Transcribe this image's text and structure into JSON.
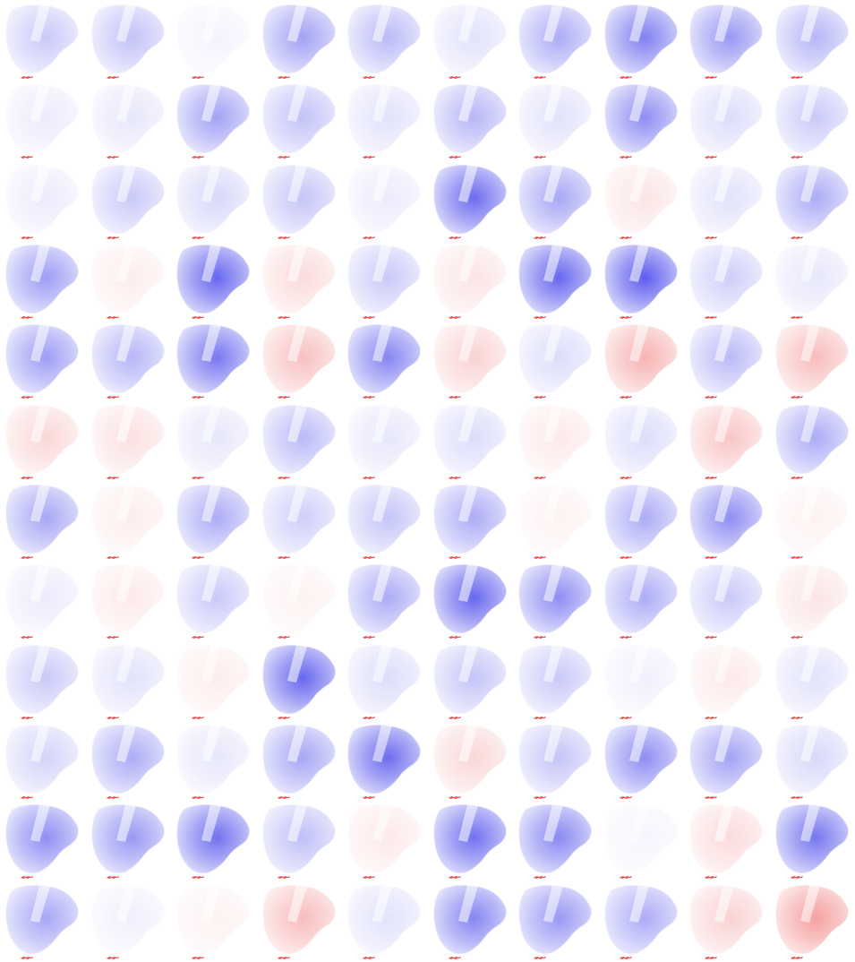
{
  "colors": {
    "background": "#ffffff",
    "negative": "#3b3bea",
    "positive": "#ec4b4b",
    "neutral": "#ffffff",
    "marker": "#e82828"
  },
  "grid": {
    "rows": 12,
    "columns": 10,
    "tiles": [
      {
        "row": 1,
        "col": 1,
        "level": -0.22
      },
      {
        "row": 1,
        "col": 2,
        "level": -0.25
      },
      {
        "row": 1,
        "col": 3,
        "level": -0.05
      },
      {
        "row": 1,
        "col": 4,
        "level": -0.38
      },
      {
        "row": 1,
        "col": 5,
        "level": -0.28
      },
      {
        "row": 1,
        "col": 6,
        "level": -0.12
      },
      {
        "row": 1,
        "col": 7,
        "level": -0.34
      },
      {
        "row": 1,
        "col": 8,
        "level": -0.52
      },
      {
        "row": 1,
        "col": 9,
        "level": -0.42
      },
      {
        "row": 1,
        "col": 10,
        "level": -0.3
      },
      {
        "row": 2,
        "col": 1,
        "level": -0.08
      },
      {
        "row": 2,
        "col": 2,
        "level": -0.1
      },
      {
        "row": 2,
        "col": 3,
        "level": -0.38
      },
      {
        "row": 2,
        "col": 4,
        "level": -0.25
      },
      {
        "row": 2,
        "col": 5,
        "level": -0.12
      },
      {
        "row": 2,
        "col": 6,
        "level": -0.3
      },
      {
        "row": 2,
        "col": 7,
        "level": -0.12
      },
      {
        "row": 2,
        "col": 8,
        "level": -0.46
      },
      {
        "row": 2,
        "col": 9,
        "level": -0.14
      },
      {
        "row": 2,
        "col": 10,
        "level": -0.22
      },
      {
        "row": 3,
        "col": 1,
        "level": -0.08
      },
      {
        "row": 3,
        "col": 2,
        "level": -0.22
      },
      {
        "row": 3,
        "col": 3,
        "level": -0.16
      },
      {
        "row": 3,
        "col": 4,
        "level": -0.24
      },
      {
        "row": 3,
        "col": 5,
        "level": -0.08
      },
      {
        "row": 3,
        "col": 6,
        "level": -0.6
      },
      {
        "row": 3,
        "col": 7,
        "level": -0.36
      },
      {
        "row": 3,
        "col": 8,
        "level": 0.12
      },
      {
        "row": 3,
        "col": 9,
        "level": -0.12
      },
      {
        "row": 3,
        "col": 10,
        "level": -0.34
      },
      {
        "row": 4,
        "col": 1,
        "level": -0.4
      },
      {
        "row": 4,
        "col": 2,
        "level": 0.08
      },
      {
        "row": 4,
        "col": 3,
        "level": -0.62
      },
      {
        "row": 4,
        "col": 4,
        "level": 0.16
      },
      {
        "row": 4,
        "col": 5,
        "level": -0.22
      },
      {
        "row": 4,
        "col": 6,
        "level": 0.12
      },
      {
        "row": 4,
        "col": 7,
        "level": -0.62
      },
      {
        "row": 4,
        "col": 8,
        "level": -0.66
      },
      {
        "row": 4,
        "col": 9,
        "level": -0.2
      },
      {
        "row": 4,
        "col": 10,
        "level": -0.1
      },
      {
        "row": 5,
        "col": 1,
        "level": -0.4
      },
      {
        "row": 5,
        "col": 2,
        "level": -0.3
      },
      {
        "row": 5,
        "col": 3,
        "level": -0.55
      },
      {
        "row": 5,
        "col": 4,
        "level": 0.28
      },
      {
        "row": 5,
        "col": 5,
        "level": -0.5
      },
      {
        "row": 5,
        "col": 6,
        "level": 0.2
      },
      {
        "row": 5,
        "col": 7,
        "level": -0.14
      },
      {
        "row": 5,
        "col": 8,
        "level": 0.34
      },
      {
        "row": 5,
        "col": 9,
        "level": -0.28
      },
      {
        "row": 5,
        "col": 10,
        "level": 0.3
      },
      {
        "row": 6,
        "col": 1,
        "level": 0.18
      },
      {
        "row": 6,
        "col": 2,
        "level": 0.14
      },
      {
        "row": 6,
        "col": 3,
        "level": -0.1
      },
      {
        "row": 6,
        "col": 4,
        "level": -0.28
      },
      {
        "row": 6,
        "col": 5,
        "level": -0.1
      },
      {
        "row": 6,
        "col": 6,
        "level": -0.14
      },
      {
        "row": 6,
        "col": 7,
        "level": 0.1
      },
      {
        "row": 6,
        "col": 8,
        "level": -0.14
      },
      {
        "row": 6,
        "col": 9,
        "level": 0.26
      },
      {
        "row": 6,
        "col": 10,
        "level": -0.34
      },
      {
        "row": 7,
        "col": 1,
        "level": -0.36
      },
      {
        "row": 7,
        "col": 2,
        "level": 0.08
      },
      {
        "row": 7,
        "col": 3,
        "level": -0.34
      },
      {
        "row": 7,
        "col": 4,
        "level": -0.2
      },
      {
        "row": 7,
        "col": 5,
        "level": -0.24
      },
      {
        "row": 7,
        "col": 6,
        "level": -0.34
      },
      {
        "row": 7,
        "col": 7,
        "level": 0.06
      },
      {
        "row": 7,
        "col": 8,
        "level": -0.34
      },
      {
        "row": 7,
        "col": 9,
        "level": -0.46
      },
      {
        "row": 7,
        "col": 10,
        "level": 0.06
      },
      {
        "row": 8,
        "col": 1,
        "level": -0.08
      },
      {
        "row": 8,
        "col": 2,
        "level": 0.1
      },
      {
        "row": 8,
        "col": 3,
        "level": -0.22
      },
      {
        "row": 8,
        "col": 4,
        "level": 0.06
      },
      {
        "row": 8,
        "col": 5,
        "level": -0.34
      },
      {
        "row": 8,
        "col": 6,
        "level": -0.62
      },
      {
        "row": 8,
        "col": 7,
        "level": -0.46
      },
      {
        "row": 8,
        "col": 8,
        "level": -0.34
      },
      {
        "row": 8,
        "col": 9,
        "level": -0.22
      },
      {
        "row": 8,
        "col": 10,
        "level": 0.12
      },
      {
        "row": 9,
        "col": 1,
        "level": -0.22
      },
      {
        "row": 9,
        "col": 2,
        "level": -0.12
      },
      {
        "row": 9,
        "col": 3,
        "level": 0.08
      },
      {
        "row": 9,
        "col": 4,
        "level": -0.62
      },
      {
        "row": 9,
        "col": 5,
        "level": -0.14
      },
      {
        "row": 9,
        "col": 6,
        "level": -0.24
      },
      {
        "row": 9,
        "col": 7,
        "level": -0.22
      },
      {
        "row": 9,
        "col": 8,
        "level": -0.06
      },
      {
        "row": 9,
        "col": 9,
        "level": 0.1
      },
      {
        "row": 9,
        "col": 10,
        "level": -0.12
      },
      {
        "row": 10,
        "col": 1,
        "level": -0.18
      },
      {
        "row": 10,
        "col": 2,
        "level": -0.34
      },
      {
        "row": 10,
        "col": 3,
        "level": -0.1
      },
      {
        "row": 10,
        "col": 4,
        "level": -0.36
      },
      {
        "row": 10,
        "col": 5,
        "level": -0.6
      },
      {
        "row": 10,
        "col": 6,
        "level": 0.18
      },
      {
        "row": 10,
        "col": 7,
        "level": -0.24
      },
      {
        "row": 10,
        "col": 8,
        "level": -0.46
      },
      {
        "row": 10,
        "col": 9,
        "level": -0.38
      },
      {
        "row": 10,
        "col": 10,
        "level": -0.16
      },
      {
        "row": 11,
        "col": 1,
        "level": -0.46
      },
      {
        "row": 11,
        "col": 2,
        "level": -0.42
      },
      {
        "row": 11,
        "col": 3,
        "level": -0.58
      },
      {
        "row": 11,
        "col": 4,
        "level": -0.26
      },
      {
        "row": 11,
        "col": 5,
        "level": 0.1
      },
      {
        "row": 11,
        "col": 6,
        "level": -0.58
      },
      {
        "row": 11,
        "col": 7,
        "level": -0.48
      },
      {
        "row": 11,
        "col": 8,
        "level": -0.04
      },
      {
        "row": 11,
        "col": 9,
        "level": 0.16
      },
      {
        "row": 11,
        "col": 10,
        "level": -0.56
      },
      {
        "row": 12,
        "col": 1,
        "level": -0.36
      },
      {
        "row": 12,
        "col": 2,
        "level": -0.06
      },
      {
        "row": 12,
        "col": 3,
        "level": 0.06
      },
      {
        "row": 12,
        "col": 4,
        "level": 0.3
      },
      {
        "row": 12,
        "col": 5,
        "level": -0.12
      },
      {
        "row": 12,
        "col": 6,
        "level": -0.5
      },
      {
        "row": 12,
        "col": 7,
        "level": -0.42
      },
      {
        "row": 12,
        "col": 8,
        "level": -0.34
      },
      {
        "row": 12,
        "col": 9,
        "level": 0.2
      },
      {
        "row": 12,
        "col": 10,
        "level": 0.42
      }
    ]
  }
}
